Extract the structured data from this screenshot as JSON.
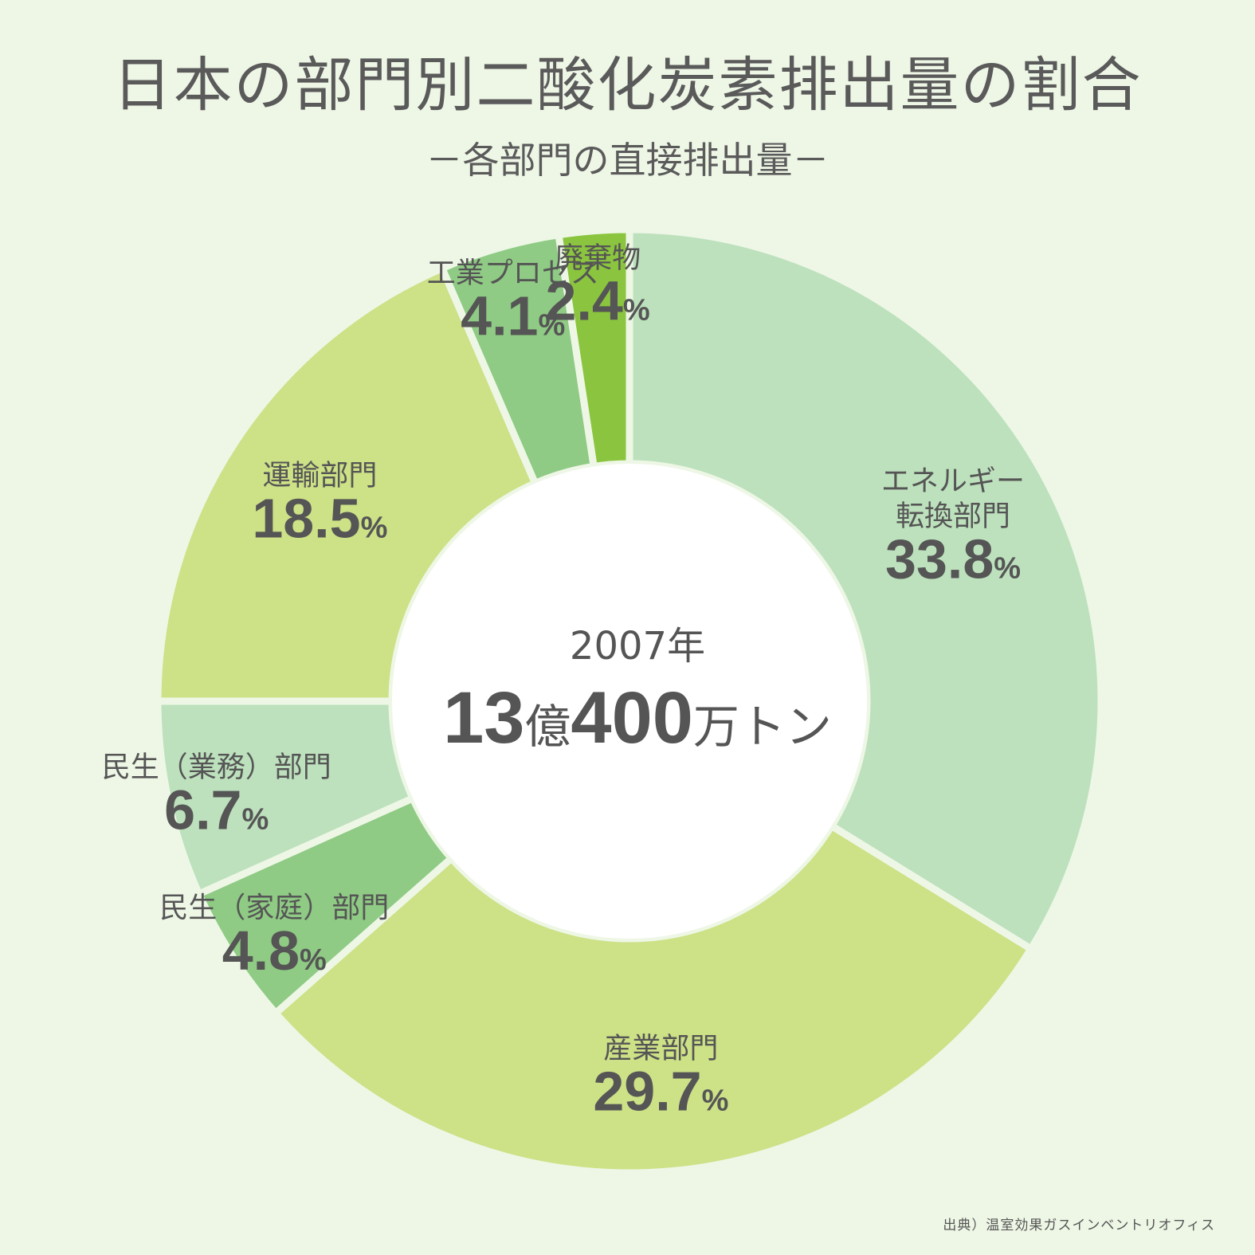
{
  "title": "日本の部門別二酸化炭素排出量の割合",
  "subtitle": "－各部門の直接排出量－",
  "center": {
    "year": "2007年",
    "total_num1": "13",
    "total_unit1": "億",
    "total_num2": "400",
    "total_unit2": "万トン"
  },
  "source": "出典）温室効果ガスインベントリオフィス",
  "chart_data": {
    "type": "pie",
    "donut": true,
    "unit": "%",
    "slices": [
      {
        "name": "エネルギー転換部門",
        "label_lines": [
          "エネルギー",
          "転換部門"
        ],
        "value": 33.8,
        "value_label": "33.8",
        "color": "#bde1bd"
      },
      {
        "name": "産業部門",
        "label_lines": [
          "産業部門"
        ],
        "value": 29.7,
        "value_label": "29.7",
        "color": "#cde187"
      },
      {
        "name": "民生（家庭）部門",
        "label_lines": [
          "民生（家庭）部門"
        ],
        "value": 4.8,
        "value_label": "4.8",
        "color": "#8fcb84"
      },
      {
        "name": "民生（業務）部門",
        "label_lines": [
          "民生（業務）部門"
        ],
        "value": 6.7,
        "value_label": "6.7",
        "color": "#bde1bd"
      },
      {
        "name": "運輸部門",
        "label_lines": [
          "運輸部門"
        ],
        "value": 18.5,
        "value_label": "18.5",
        "color": "#cde187"
      },
      {
        "name": "工業プロセス",
        "label_lines": [
          "工業プロセス"
        ],
        "value": 4.1,
        "value_label": "4.1",
        "color": "#8fcb84"
      },
      {
        "name": "廃棄物",
        "label_lines": [
          "廃棄物"
        ],
        "value": 2.4,
        "value_label": "2.4",
        "color": "#8bc53f"
      }
    ]
  }
}
